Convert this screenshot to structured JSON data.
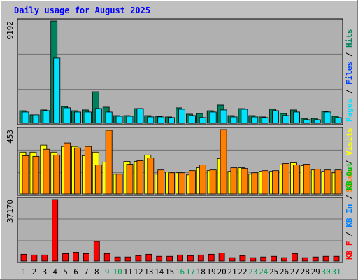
{
  "title": "Daily usage for August 2025",
  "legend_separator": " / ",
  "highlight_color": "#00a050",
  "highlight_categories": [
    "9",
    "10",
    "16",
    "17",
    "23",
    "24",
    "30",
    "31"
  ],
  "chart_data": [
    {
      "type": "bar",
      "categories": [
        "1",
        "2",
        "3",
        "4",
        "5",
        "6",
        "7",
        "8",
        "9",
        "10",
        "11",
        "12",
        "13",
        "14",
        "15",
        "16",
        "17",
        "18",
        "19",
        "20",
        "21",
        "22",
        "23",
        "24",
        "25",
        "26",
        "27",
        "28",
        "29",
        "30",
        "31"
      ],
      "ylim": [
        0,
        9192
      ],
      "yticks": [
        9192
      ],
      "series": [
        {
          "name": "Hits",
          "color": "#00805c",
          "values": [
            1130,
            760,
            1200,
            9192,
            1510,
            1130,
            1200,
            2830,
            1450,
            690,
            690,
            1320,
            690,
            630,
            570,
            1390,
            820,
            880,
            1130,
            1640,
            690,
            1320,
            690,
            570,
            1260,
            880,
            1200,
            440,
            440,
            1070,
            630
          ]
        },
        {
          "name": "Files",
          "color": "#0040ff",
          "values": [
            1010,
            760,
            1130,
            5860,
            1390,
            1010,
            1010,
            1320,
            1010,
            630,
            630,
            1320,
            570,
            570,
            510,
            1260,
            690,
            510,
            1010,
            1200,
            570,
            1260,
            570,
            510,
            1130,
            690,
            1010,
            320,
            320,
            1010,
            510
          ]
        },
        {
          "name": "Pages",
          "color": "#00e0ff",
          "values": [
            1010,
            760,
            1130,
            5860,
            1390,
            1010,
            1010,
            1320,
            1010,
            630,
            630,
            1320,
            570,
            570,
            510,
            1260,
            690,
            510,
            1010,
            1200,
            570,
            1260,
            570,
            510,
            1130,
            690,
            1010,
            320,
            320,
            1010,
            510
          ]
        }
      ]
    },
    {
      "type": "bar",
      "categories": [
        "1",
        "2",
        "3",
        "4",
        "5",
        "6",
        "7",
        "8",
        "9",
        "10",
        "11",
        "12",
        "13",
        "14",
        "15",
        "16",
        "17",
        "18",
        "19",
        "20",
        "21",
        "22",
        "23",
        "24",
        "25",
        "26",
        "27",
        "28",
        "29",
        "30",
        "31"
      ],
      "ylim": [
        0,
        453
      ],
      "yticks": [
        453
      ],
      "series": [
        {
          "name": "Visits",
          "color": "#ffff00",
          "values": [
            294,
            294,
            344,
            294,
            334,
            334,
            269,
            294,
            224,
            139,
            229,
            229,
            274,
            139,
            154,
            149,
            134,
            184,
            164,
            249,
            159,
            184,
            139,
            159,
            159,
            204,
            219,
            199,
            169,
            159,
            149
          ]
        },
        {
          "name": "Sites",
          "color": "#ff8000",
          "values": [
            269,
            264,
            314,
            274,
            359,
            324,
            334,
            204,
            448,
            139,
            209,
            234,
            254,
            169,
            149,
            149,
            164,
            204,
            169,
            453,
            184,
            179,
            149,
            164,
            164,
            214,
            204,
            209,
            174,
            169,
            169
          ]
        }
      ]
    },
    {
      "type": "bar",
      "categories": [
        "1",
        "2",
        "3",
        "4",
        "5",
        "6",
        "7",
        "8",
        "9",
        "10",
        "11",
        "12",
        "13",
        "14",
        "15",
        "16",
        "17",
        "18",
        "19",
        "20",
        "21",
        "22",
        "23",
        "24",
        "25",
        "26",
        "27",
        "28",
        "29",
        "30",
        "31"
      ],
      "ylim": [
        0,
        37170
      ],
      "yticks": [
        37170
      ],
      "series": [
        {
          "name": "KB Out",
          "color": "#00c000"
        },
        {
          "name": "KB In",
          "color": "#0080ff"
        },
        {
          "name": "KB F",
          "color": "#ff0000",
          "values": [
            4080,
            3670,
            3670,
            37170,
            4490,
            5300,
            4490,
            11830,
            4490,
            2450,
            2450,
            3260,
            4080,
            2860,
            2860,
            3670,
            3260,
            3670,
            4080,
            4900,
            2040,
            3260,
            2040,
            2450,
            2860,
            2040,
            4490,
            2040,
            2450,
            2860,
            2860
          ]
        }
      ]
    }
  ]
}
